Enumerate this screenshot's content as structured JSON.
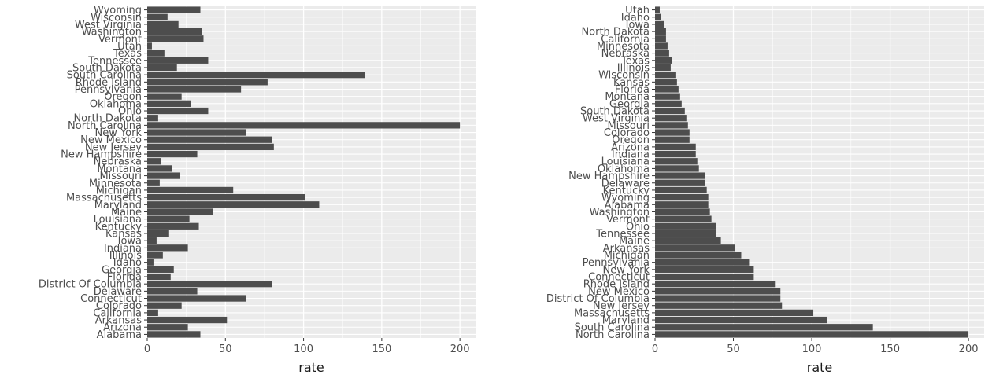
{
  "chart_data": [
    {
      "type": "bar",
      "orientation": "horizontal",
      "xlabel": "rate",
      "ylabel": "",
      "xlim": [
        0,
        210
      ],
      "xticks": [
        0,
        50,
        100,
        150,
        200
      ],
      "grid": true,
      "bar_color": "#4d4d4d",
      "panel_background": "#ebebeb",
      "categories": [
        "Alabama",
        "Arizona",
        "Arkansas",
        "California",
        "Colorado",
        "Connecticut",
        "Delaware",
        "District Of Columbia",
        "Florida",
        "Georgia",
        "Idaho",
        "Illinois",
        "Indiana",
        "Iowa",
        "Kansas",
        "Kentucky",
        "Louisiana",
        "Maine",
        "Maryland",
        "Massachusetts",
        "Michigan",
        "Minnesota",
        "Missouri",
        "Montana",
        "Nebraska",
        "New Hampshire",
        "New Jersey",
        "New Mexico",
        "New York",
        "North Carolina",
        "North Dakota",
        "Ohio",
        "Oklahoma",
        "Oregon",
        "Pennsylvania",
        "Rhode Island",
        "South Carolina",
        "South Dakota",
        "Tennessee",
        "Texas",
        "Utah",
        "Vermont",
        "Washington",
        "West Virginia",
        "Wisconsin",
        "Wyoming"
      ],
      "values": [
        34,
        26,
        51,
        7,
        22,
        63,
        32,
        80,
        15,
        17,
        4,
        10,
        26,
        6,
        14,
        33,
        27,
        42,
        110,
        101,
        55,
        8,
        21,
        16,
        9,
        32,
        81,
        80,
        63,
        200,
        7,
        39,
        28,
        22,
        60,
        77,
        139,
        19,
        39,
        11,
        3,
        36,
        35,
        20,
        13,
        34
      ]
    },
    {
      "type": "bar",
      "orientation": "horizontal",
      "xlabel": "rate",
      "ylabel": "",
      "xlim": [
        0,
        210
      ],
      "xticks": [
        0,
        50,
        100,
        150,
        200
      ],
      "grid": true,
      "bar_color": "#4d4d4d",
      "panel_background": "#ebebeb",
      "categories": [
        "North Carolina",
        "South Carolina",
        "Maryland",
        "Massachusetts",
        "New Jersey",
        "District Of Columbia",
        "New Mexico",
        "Rhode Island",
        "Connecticut",
        "New York",
        "Pennsylvania",
        "Michigan",
        "Arkansas",
        "Maine",
        "Tennessee",
        "Ohio",
        "Vermont",
        "Washington",
        "Alabama",
        "Wyoming",
        "Kentucky",
        "Delaware",
        "New Hampshire",
        "Oklahoma",
        "Louisiana",
        "Indiana",
        "Arizona",
        "Oregon",
        "Colorado",
        "Missouri",
        "West Virginia",
        "South Dakota",
        "Georgia",
        "Montana",
        "Florida",
        "Kansas",
        "Wisconsin",
        "Illinois",
        "Texas",
        "Nebraska",
        "Minnesota",
        "California",
        "North Dakota",
        "Iowa",
        "Idaho",
        "Utah"
      ],
      "values": [
        200,
        139,
        110,
        101,
        81,
        80,
        80,
        77,
        63,
        63,
        60,
        55,
        51,
        42,
        39,
        39,
        36,
        35,
        34,
        34,
        33,
        32,
        32,
        28,
        27,
        26,
        26,
        22,
        22,
        21,
        20,
        19,
        17,
        16,
        15,
        14,
        13,
        10,
        11,
        9,
        8,
        7,
        7,
        6,
        4,
        3
      ]
    }
  ]
}
